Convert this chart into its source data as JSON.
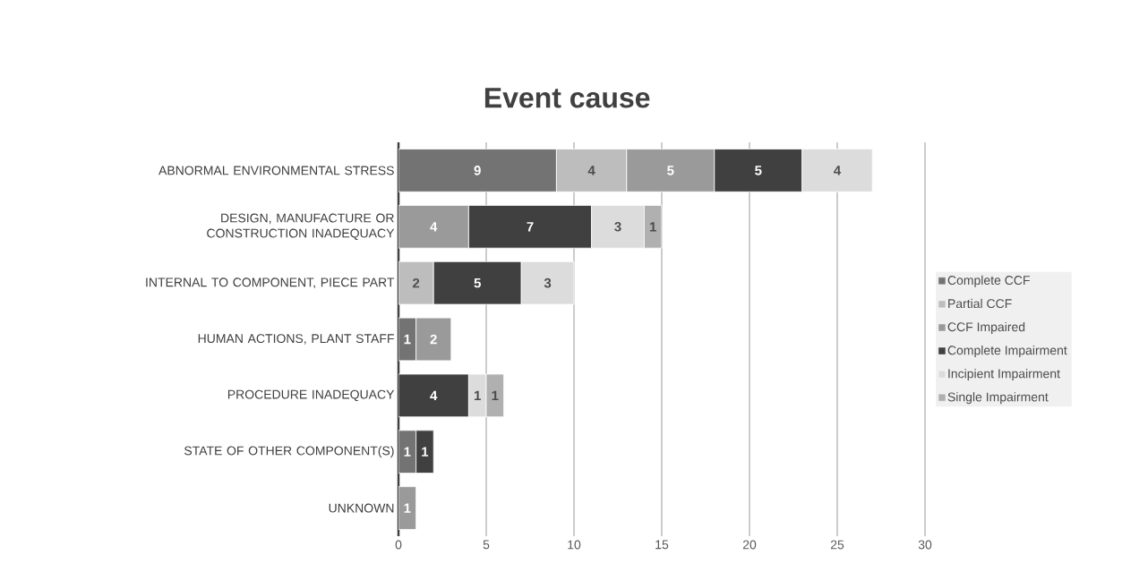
{
  "chart_data": {
    "type": "bar",
    "orientation": "horizontal",
    "stacked": true,
    "title": "Event cause",
    "categories": [
      "ABNORMAL ENVIRONMENTAL STRESS",
      "DESIGN, MANUFACTURE OR CONSTRUCTION INADEQUACY",
      "INTERNAL TO COMPONENT, PIECE PART",
      "HUMAN ACTIONS, PLANT STAFF",
      "PROCEDURE INADEQUACY",
      "STATE OF OTHER COMPONENT(S)",
      "UNKNOWN"
    ],
    "series": [
      {
        "name": "Complete CCF",
        "color": "#737373",
        "values": [
          9,
          null,
          null,
          1,
          null,
          1,
          null
        ]
      },
      {
        "name": "Partial CCF",
        "color": "#bdbdbd",
        "values": [
          4,
          null,
          2,
          null,
          null,
          null,
          null
        ]
      },
      {
        "name": "CCF Impaired",
        "color": "#9a9a9a",
        "values": [
          5,
          4,
          null,
          2,
          null,
          null,
          1
        ]
      },
      {
        "name": "Complete Impairment",
        "color": "#404040",
        "values": [
          5,
          7,
          5,
          null,
          4,
          1,
          null
        ]
      },
      {
        "name": "Incipient Impairment",
        "color": "#dcdcdc",
        "values": [
          4,
          3,
          3,
          null,
          1,
          null,
          null
        ]
      },
      {
        "name": "Single Impairment",
        "color": "#b0b0b0",
        "values": [
          null,
          1,
          null,
          null,
          1,
          null,
          null
        ]
      }
    ],
    "xlim": [
      0,
      30
    ],
    "xticks": [
      0,
      5,
      10,
      15,
      20,
      25,
      30
    ],
    "grid": "x",
    "legend": "right",
    "data_labels": true
  }
}
